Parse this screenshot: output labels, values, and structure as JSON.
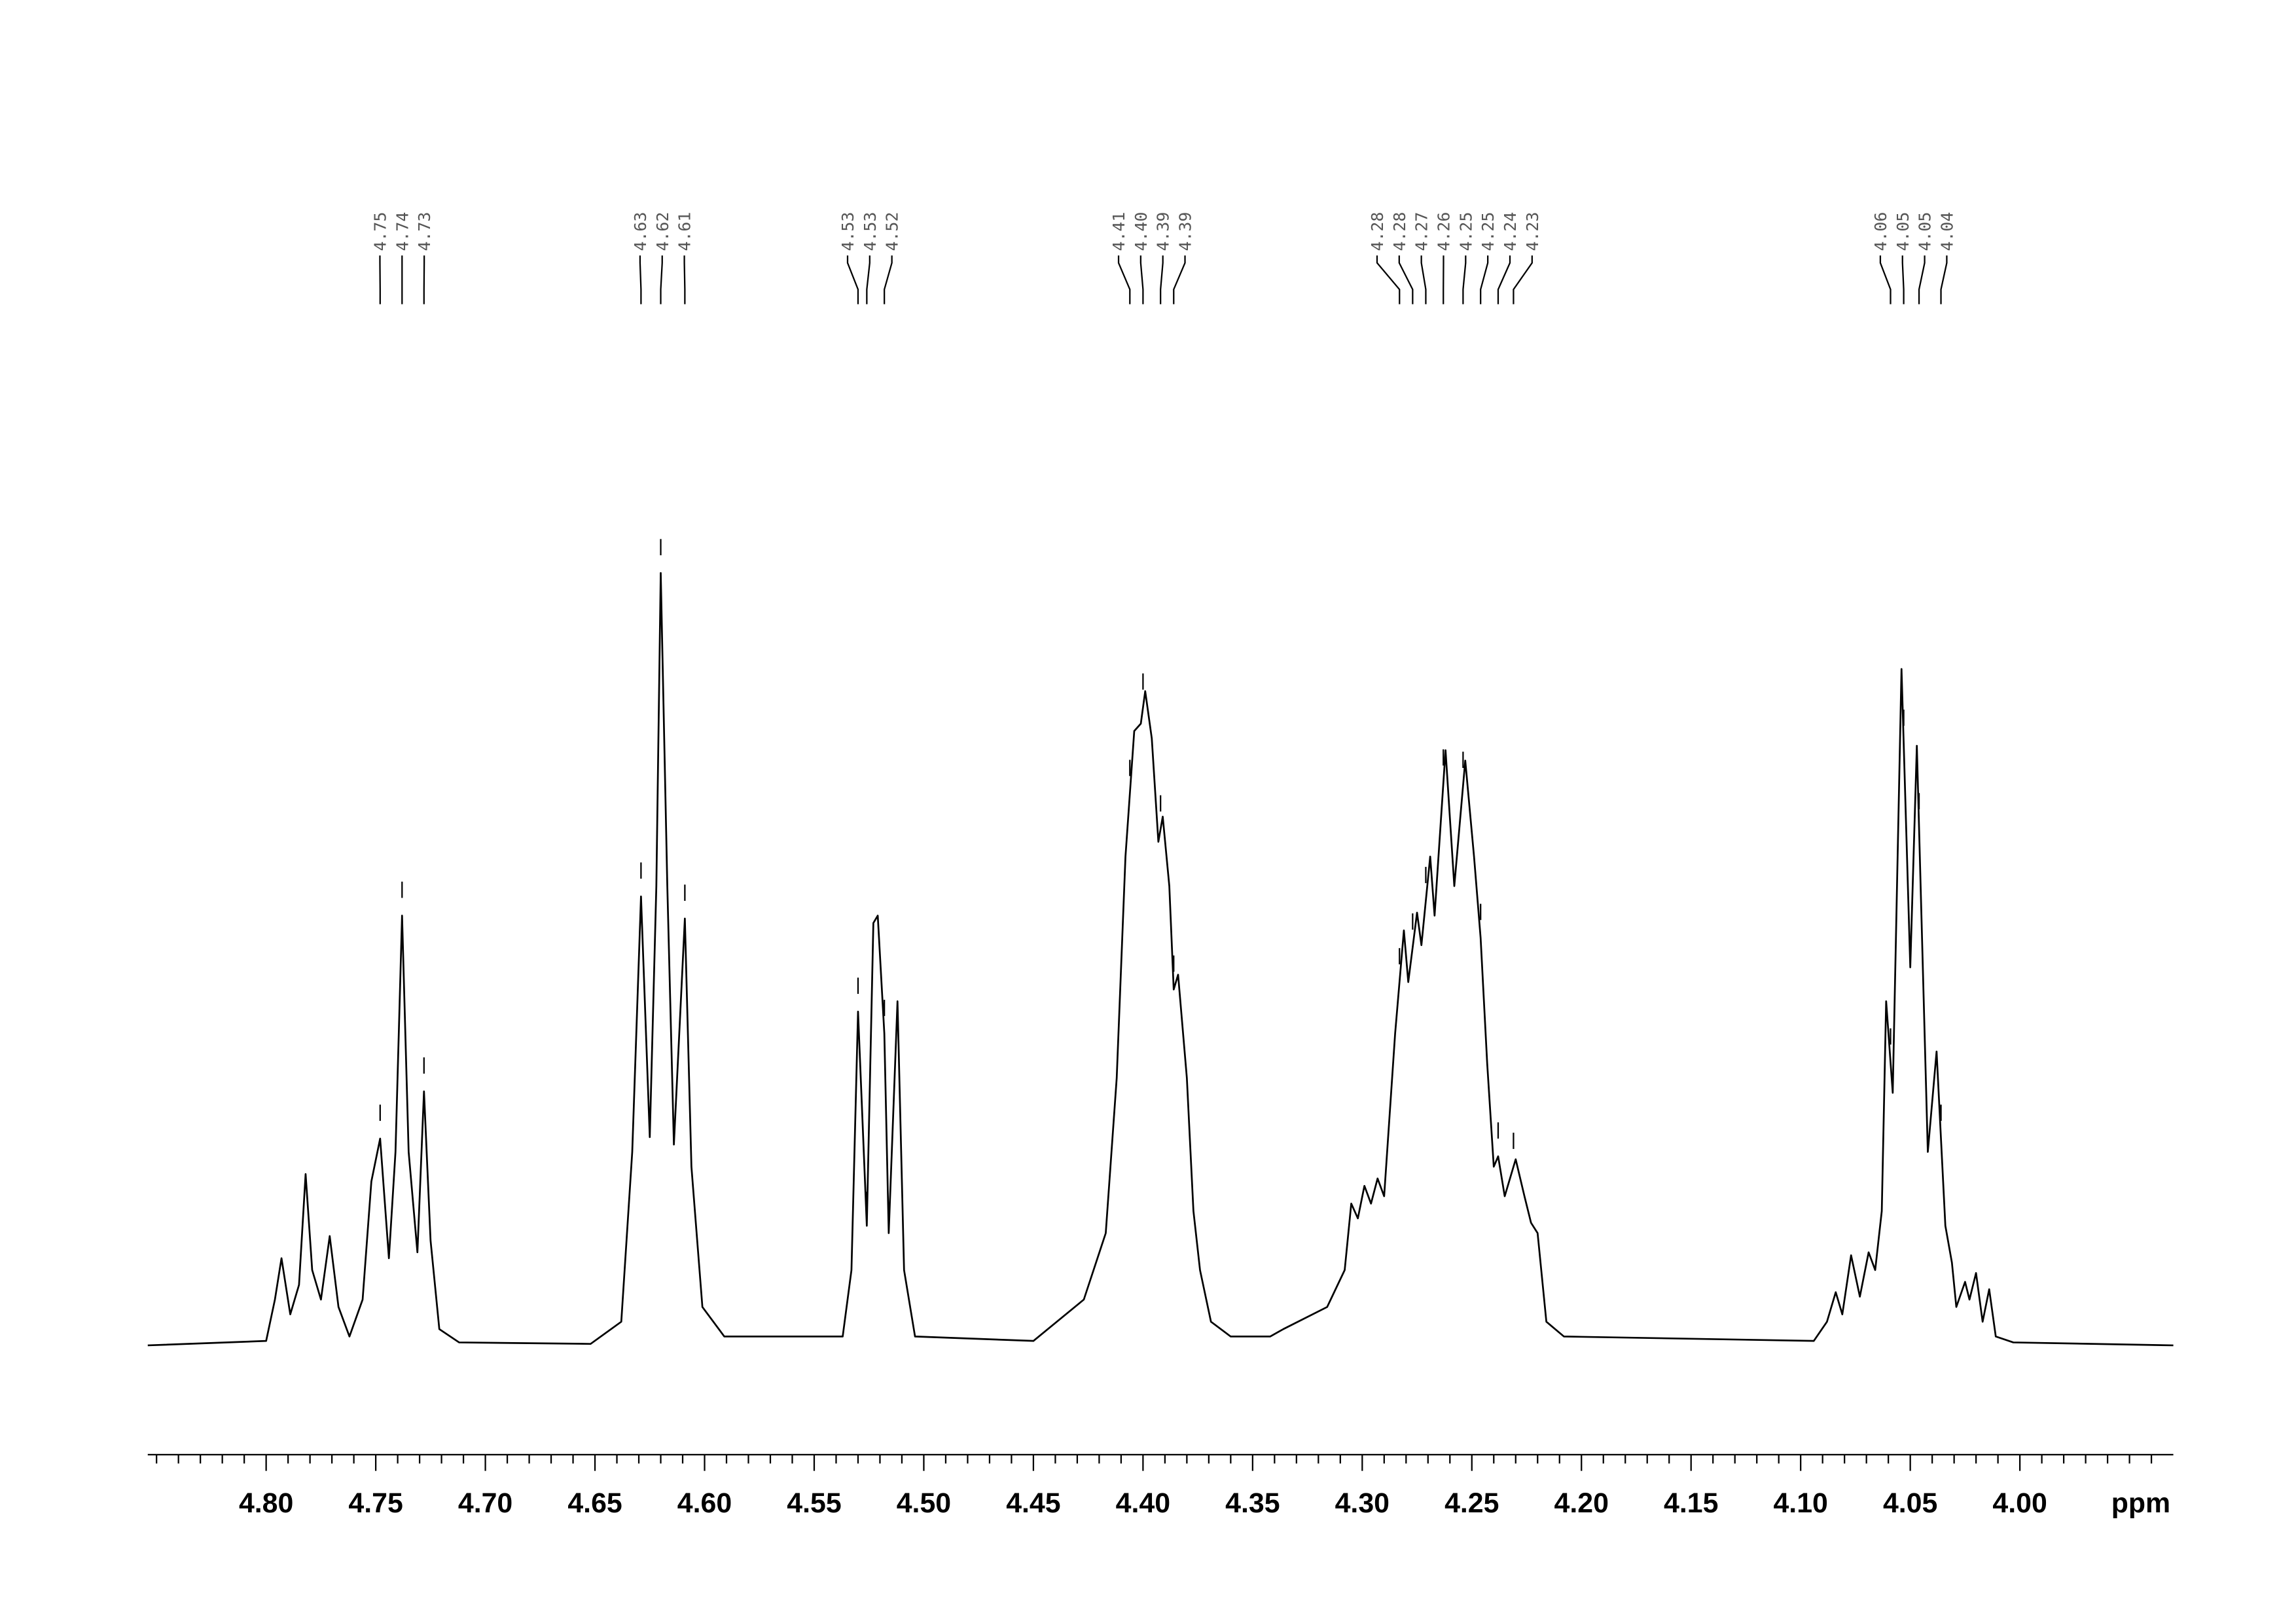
{
  "chart_data": {
    "type": "line",
    "x_label": "ppm",
    "color": "#000000",
    "xlim": [
      4.854,
      3.93
    ],
    "ylim": [
      -80,
      820
    ],
    "xticks": [
      {
        "value": 4.8,
        "label": "4.80"
      },
      {
        "value": 4.75,
        "label": "4.75"
      },
      {
        "value": 4.7,
        "label": "4.70"
      },
      {
        "value": 4.65,
        "label": "4.65"
      },
      {
        "value": 4.6,
        "label": "4.60"
      },
      {
        "value": 4.55,
        "label": "4.55"
      },
      {
        "value": 4.5,
        "label": "4.50"
      },
      {
        "value": 4.45,
        "label": "4.45"
      },
      {
        "value": 4.4,
        "label": "4.40"
      },
      {
        "value": 4.35,
        "label": "4.35"
      },
      {
        "value": 4.3,
        "label": "4.30"
      },
      {
        "value": 4.25,
        "label": "4.25"
      },
      {
        "value": 4.2,
        "label": "4.20"
      },
      {
        "value": 4.15,
        "label": "4.15"
      },
      {
        "value": 4.1,
        "label": "4.10"
      },
      {
        "value": 4.05,
        "label": "4.05"
      },
      {
        "value": 4.0,
        "label": "4.00"
      }
    ],
    "minor_xticks": [
      4.85,
      4.84,
      4.83,
      4.82,
      4.81,
      4.79,
      4.78,
      4.77,
      4.76,
      4.74,
      4.73,
      4.72,
      4.71,
      4.69,
      4.68,
      4.67,
      4.66,
      4.64,
      4.63,
      4.62,
      4.61,
      4.59,
      4.58,
      4.57,
      4.56,
      4.54,
      4.53,
      4.52,
      4.51,
      4.49,
      4.48,
      4.47,
      4.46,
      4.44,
      4.43,
      4.42,
      4.41,
      4.39,
      4.38,
      4.37,
      4.36,
      4.34,
      4.33,
      4.32,
      4.31,
      4.29,
      4.28,
      4.27,
      4.26,
      4.24,
      4.23,
      4.22,
      4.21,
      4.19,
      4.18,
      4.17,
      4.16,
      4.14,
      4.13,
      4.12,
      4.11,
      4.09,
      4.08,
      4.07,
      4.06,
      4.04,
      4.03,
      4.02,
      4.01,
      3.99,
      3.98,
      3.97,
      3.96,
      3.95,
      3.94
    ],
    "peaks": [
      {
        "value": 4.748,
        "label": "4.75"
      },
      {
        "value": 4.738,
        "label": "4.74"
      },
      {
        "value": 4.728,
        "label": "4.73"
      },
      {
        "value": 4.629,
        "label": "4.63"
      },
      {
        "value": 4.62,
        "label": "4.62"
      },
      {
        "value": 4.609,
        "label": "4.61"
      },
      {
        "value": 4.53,
        "label": "4.53"
      },
      {
        "value": 4.526,
        "label": "4.53"
      },
      {
        "value": 4.518,
        "label": "4.52"
      },
      {
        "value": 4.406,
        "label": "4.41"
      },
      {
        "value": 4.4,
        "label": "4.40"
      },
      {
        "value": 4.392,
        "label": "4.39"
      },
      {
        "value": 4.386,
        "label": "4.39"
      },
      {
        "value": 4.283,
        "label": "4.28"
      },
      {
        "value": 4.277,
        "label": "4.28"
      },
      {
        "value": 4.271,
        "label": "4.27"
      },
      {
        "value": 4.263,
        "label": "4.26"
      },
      {
        "value": 4.254,
        "label": "4.25"
      },
      {
        "value": 4.246,
        "label": "4.25"
      },
      {
        "value": 4.238,
        "label": "4.24"
      },
      {
        "value": 4.231,
        "label": "4.23"
      },
      {
        "value": 4.059,
        "label": "4.06"
      },
      {
        "value": 4.053,
        "label": "4.05"
      },
      {
        "value": 4.046,
        "label": "4.05"
      },
      {
        "value": 4.036,
        "label": "4.04"
      }
    ],
    "x": [
      4.854,
      4.8,
      4.796,
      4.793,
      4.789,
      4.785,
      4.782,
      4.779,
      4.775,
      4.771,
      4.767,
      4.762,
      4.756,
      4.752,
      4.748,
      4.744,
      4.741,
      4.738,
      4.735,
      4.731,
      4.728,
      4.725,
      4.721,
      4.712,
      4.652,
      4.638,
      4.633,
      4.629,
      4.625,
      4.622,
      4.62,
      4.617,
      4.614,
      4.609,
      4.606,
      4.601,
      4.591,
      4.537,
      4.533,
      4.53,
      4.526,
      4.523,
      4.521,
      4.518,
      4.516,
      4.512,
      4.509,
      4.504,
      4.45,
      4.427,
      4.417,
      4.412,
      4.408,
      4.404,
      4.401,
      4.399,
      4.396,
      4.393,
      4.391,
      4.388,
      4.386,
      4.384,
      4.38,
      4.377,
      4.374,
      4.369,
      4.36,
      4.342,
      4.336,
      4.316,
      4.308,
      4.305,
      4.302,
      4.299,
      4.296,
      4.293,
      4.29,
      4.285,
      4.281,
      4.279,
      4.275,
      4.273,
      4.269,
      4.267,
      4.262,
      4.258,
      4.253,
      4.249,
      4.246,
      4.243,
      4.24,
      4.238,
      4.235,
      4.23,
      4.226,
      4.223,
      4.22,
      4.216,
      4.208,
      4.094,
      4.088,
      4.084,
      4.081,
      4.077,
      4.073,
      4.069,
      4.066,
      4.063,
      4.061,
      4.058,
      4.054,
      4.05,
      4.047,
      4.042,
      4.038,
      4.034,
      4.031,
      4.029,
      4.025,
      4.023,
      4.02,
      4.017,
      4.014,
      4.011,
      4.003,
      3.93
    ],
    "values": [
      0,
      3,
      31,
      59,
      21,
      41,
      116,
      51,
      31,
      74,
      26,
      6,
      31,
      111,
      140,
      59,
      131,
      291,
      131,
      63,
      172,
      71,
      11,
      2,
      1,
      16,
      131,
      304,
      141,
      311,
      523,
      311,
      136,
      289,
      121,
      26,
      6,
      6,
      51,
      226,
      81,
      286,
      291,
      211,
      76,
      233,
      51,
      6,
      3,
      31,
      76,
      181,
      331,
      416,
      421,
      443,
      411,
      341,
      358,
      311,
      241,
      251,
      181,
      91,
      51,
      16,
      6,
      6,
      11,
      26,
      51,
      96,
      86,
      108,
      96,
      113,
      101,
      211,
      281,
      246,
      293,
      271,
      331,
      291,
      403,
      311,
      396,
      331,
      276,
      191,
      121,
      128,
      101,
      126,
      101,
      83,
      76,
      16,
      6,
      3,
      16,
      36,
      21,
      61,
      33,
      63,
      51,
      91,
      233,
      171,
      458,
      256,
      406,
      131,
      199,
      81,
      56,
      26,
      43,
      31,
      49,
      16,
      38,
      6,
      2,
      0
    ]
  }
}
